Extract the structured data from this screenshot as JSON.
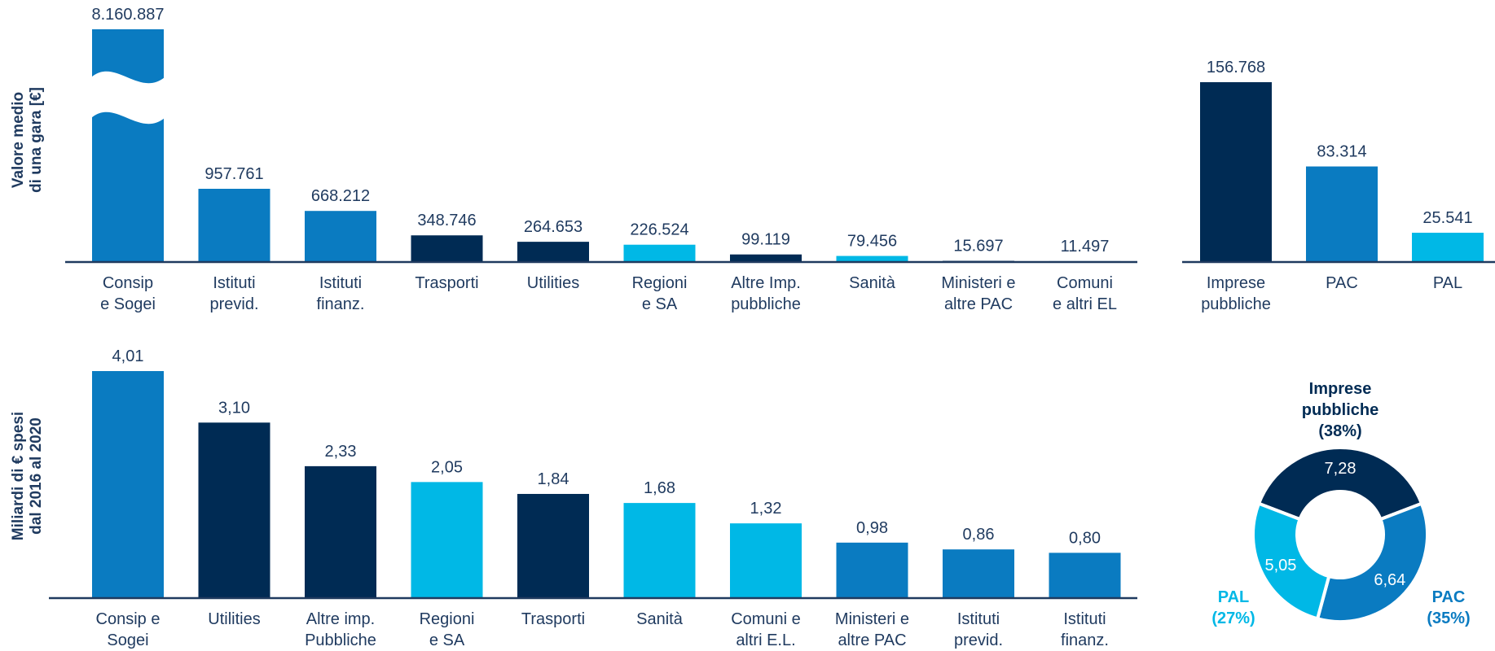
{
  "chart_data": [
    {
      "type": "bar",
      "ylabel": "Valore medio\ndi una gara [€]",
      "categories": [
        "Consip\ne Sogei",
        "Istituti\nprevid.",
        "Istituti\nfinanz.",
        "Trasporti",
        "Utilities",
        "Regioni\ne SA",
        "Altre Imp.\npubbliche",
        "Sanità",
        "Ministeri e\naltre PAC",
        "Comuni\ne altri EL"
      ],
      "values": [
        8160887,
        957761,
        668212,
        348746,
        264653,
        226524,
        99119,
        79456,
        15697,
        11497
      ],
      "value_labels": [
        "8.160.887",
        "957.761",
        "668.212",
        "348.746",
        "264.653",
        "226.524",
        "99.119",
        "79.456",
        "15.697",
        "11.497"
      ],
      "colors": [
        "#0a7bc1",
        "#0a7bc1",
        "#0a7bc1",
        "#002b54",
        "#002b54",
        "#00b8e6",
        "#002b54",
        "#00b8e6",
        "#002b54",
        "#0a7bc1"
      ],
      "broken": [
        0
      ]
    },
    {
      "type": "bar",
      "categories": [
        "Imprese\npubbliche",
        "PAC",
        "PAL"
      ],
      "values": [
        156768,
        83314,
        25541
      ],
      "value_labels": [
        "156.768",
        "83.314",
        "25.541"
      ],
      "colors": [
        "#002b54",
        "#0a7bc1",
        "#00b8e6"
      ]
    },
    {
      "type": "bar",
      "ylabel": "Miliardi di € spesi\ndal 2016 al 2020",
      "categories": [
        "Consip e\nSogei",
        "Utilities",
        "Altre imp.\nPubbliche",
        "Regioni\ne SA",
        "Trasporti",
        "Sanità",
        "Comuni e\naltri E.L.",
        "Ministeri e\naltre PAC",
        "Istituti\nprevid.",
        "Istituti\nfinanz."
      ],
      "values": [
        4.01,
        3.1,
        2.33,
        2.05,
        1.84,
        1.68,
        1.32,
        0.98,
        0.86,
        0.8
      ],
      "value_labels": [
        "4,01",
        "3,10",
        "2,33",
        "2,05",
        "1,84",
        "1,68",
        "1,32",
        "0,98",
        "0,86",
        "0,80"
      ],
      "colors": [
        "#0a7bc1",
        "#002b54",
        "#002b54",
        "#00b8e6",
        "#002b54",
        "#00b8e6",
        "#00b8e6",
        "#0a7bc1",
        "#0a7bc1",
        "#0a7bc1"
      ]
    },
    {
      "type": "donut",
      "categories": [
        "Imprese\npubbliche",
        "PAC",
        "PAL"
      ],
      "values": [
        7.28,
        6.64,
        5.05
      ],
      "value_labels": [
        "7,28",
        "6,64",
        "5,05"
      ],
      "percents": [
        38,
        35,
        27
      ],
      "percent_labels": [
        "(38%)",
        "(35%)",
        "(27%)"
      ],
      "colors": [
        "#002b54",
        "#0a7bc1",
        "#00b8e6"
      ]
    }
  ]
}
